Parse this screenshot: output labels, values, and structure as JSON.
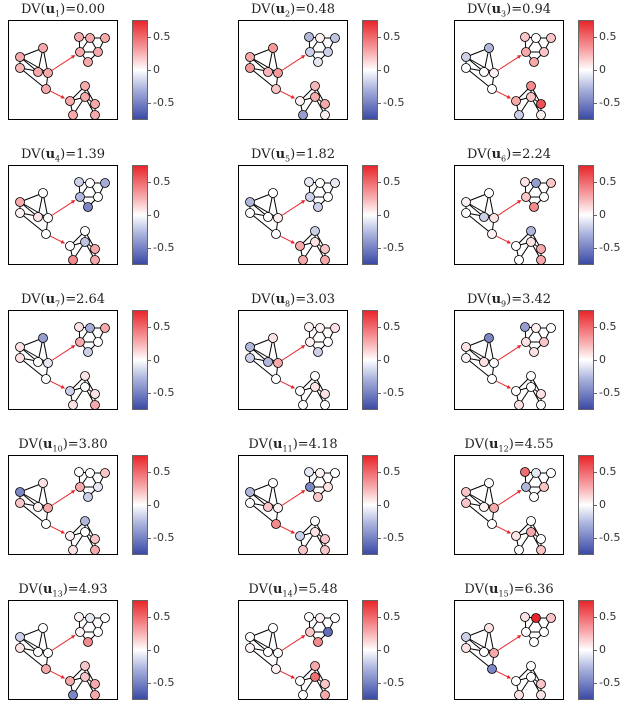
{
  "figure": {
    "title_prefix": "DV(",
    "vector_symbol": "u",
    "title_suffix": ")=",
    "colorbar": {
      "ticks": [
        "0.5",
        "0",
        "-0.5"
      ],
      "tick_values": [
        0.5,
        0,
        -0.5
      ],
      "range": [
        -0.75,
        0.75
      ],
      "colors": {
        "positive": "#e8262a",
        "zero": "#ffffff",
        "negative": "#3b4aa6"
      }
    },
    "edge_color": "#000000",
    "arrow_color": "#e8262a"
  },
  "panels": [
    {
      "index": "1",
      "value": "0.00",
      "node_values": [
        0.3,
        0.3,
        0.25,
        0.3,
        0.3,
        0.3,
        0.3,
        0.3,
        0.3,
        0.3,
        0.3,
        0.3,
        0.3,
        0.3,
        0.3,
        0.3,
        0.3,
        0.3
      ]
    },
    {
      "index": "2",
      "value": "0.48",
      "node_values": [
        0.3,
        0.35,
        0.35,
        0.35,
        0.25,
        0.2,
        -0.3,
        0.05,
        -0.25,
        -0.2,
        -0.2,
        -0.1,
        0.05,
        0.25,
        0.3,
        0.3,
        -0.4,
        0.05
      ]
    },
    {
      "index": "3",
      "value": "0.94",
      "node_values": [
        -0.2,
        -0.3,
        0.0,
        0.05,
        0.0,
        0.0,
        0.2,
        0.0,
        0.2,
        0.3,
        0.2,
        0.3,
        0.3,
        0.4,
        0.2,
        0.6,
        -0.2,
        0.05
      ]
    },
    {
      "index": "4",
      "value": "1.39",
      "node_values": [
        0.3,
        0.0,
        0.05,
        0.0,
        0.1,
        0.0,
        -0.2,
        0.0,
        -0.35,
        -0.3,
        0.0,
        -0.5,
        0.0,
        0.0,
        -0.25,
        0.3,
        0.4,
        0.3
      ]
    },
    {
      "index": "5",
      "value": "1.82",
      "node_values": [
        -0.3,
        0.0,
        0.0,
        0.05,
        0.0,
        0.0,
        -0.1,
        0.0,
        -0.1,
        -0.2,
        0.0,
        -0.2,
        0.3,
        -0.2,
        0.1,
        0.2,
        0.3,
        0.3
      ]
    },
    {
      "index": "6",
      "value": "2.24",
      "node_values": [
        0.05,
        0.0,
        0.0,
        0.1,
        -0.2,
        0.05,
        0.1,
        -0.4,
        0.2,
        0.2,
        0.0,
        0.4,
        0.0,
        -0.3,
        0.1,
        0.3,
        0.0,
        0.3
      ]
    },
    {
      "index": "7",
      "value": "2.64",
      "node_values": [
        0.1,
        -0.4,
        0.1,
        -0.1,
        0.0,
        0.0,
        0.1,
        -0.35,
        0.3,
        0.3,
        0.0,
        -0.2,
        -0.2,
        0.1,
        0.0,
        0.1,
        0.1,
        0.3
      ]
    },
    {
      "index": "8",
      "value": "3.03",
      "node_values": [
        -0.3,
        0.1,
        -0.2,
        0.3,
        -0.3,
        0.0,
        0.05,
        0.05,
        0.1,
        0.05,
        0.0,
        -0.2,
        0.0,
        0.0,
        0.1,
        0.1,
        0.0,
        0.0
      ]
    },
    {
      "index": "9",
      "value": "3.42",
      "node_values": [
        0.1,
        -0.5,
        0.05,
        0.0,
        0.1,
        0.0,
        -0.4,
        0.05,
        0.0,
        0.1,
        0.2,
        0.1,
        0.0,
        0.0,
        0.0,
        0.1,
        0.1,
        0.0
      ]
    },
    {
      "index": "10",
      "value": "3.80",
      "node_values": [
        -0.5,
        0.1,
        0.2,
        0.3,
        0.05,
        0.0,
        0.0,
        0.0,
        0.2,
        0.3,
        -0.1,
        -0.2,
        0.05,
        -0.3,
        0.0,
        0.2,
        0.1,
        0.3
      ]
    },
    {
      "index": "11",
      "value": "4.18",
      "node_values": [
        -0.3,
        0.0,
        0.0,
        0.05,
        0.2,
        0.4,
        -0.1,
        0.05,
        0.0,
        -0.5,
        0.1,
        0.2,
        -0.2,
        0.0,
        0.1,
        0.2,
        0.2,
        0.2
      ]
    },
    {
      "index": "12",
      "value": "4.55",
      "node_values": [
        0.2,
        0.0,
        0.2,
        0.3,
        0.05,
        0.0,
        0.5,
        -0.1,
        0.0,
        -0.3,
        0.2,
        0.0,
        0.1,
        0.0,
        0.3,
        0.0,
        0.0,
        0.2
      ]
    },
    {
      "index": "13",
      "value": "4.93",
      "node_values": [
        -0.2,
        0.0,
        0.1,
        0.0,
        0.0,
        0.3,
        0.05,
        -0.1,
        0.0,
        0.05,
        0.0,
        0.4,
        0.3,
        0.2,
        0.2,
        0.3,
        -0.5,
        0.3
      ]
    },
    {
      "index": "14",
      "value": "5.48",
      "node_values": [
        0.0,
        0.0,
        0.05,
        0.0,
        0.0,
        0.05,
        0.0,
        0.05,
        0.0,
        0.2,
        -0.6,
        0.4,
        0.0,
        0.3,
        0.5,
        0.2,
        0.0,
        0.3
      ]
    },
    {
      "index": "15",
      "value": "6.36",
      "node_values": [
        -0.2,
        0.1,
        0.1,
        0.3,
        0.0,
        -0.5,
        0.1,
        0.75,
        0.2,
        0.0,
        0.0,
        0.0,
        0.0,
        0.0,
        0.0,
        0.2,
        0.1,
        0.1
      ]
    }
  ]
}
